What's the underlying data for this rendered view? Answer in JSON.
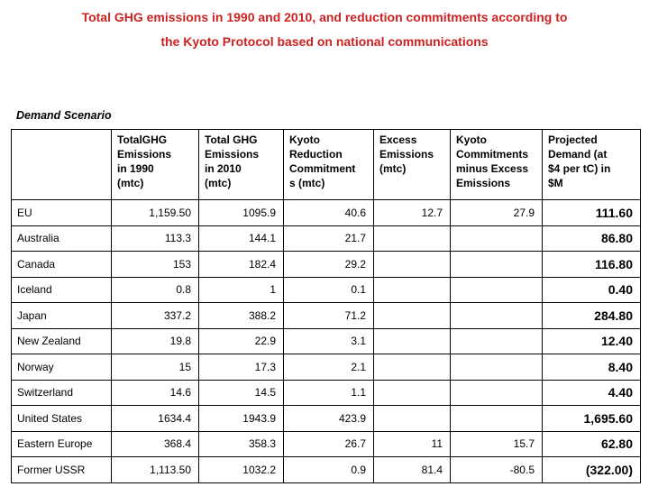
{
  "slide": {
    "title_line1": "Total GHG emissions in 1990 and 2010, and reduction commitments according to",
    "title_line2": "the Kyoto Protocol based on national communications",
    "title_color": "#cc2222",
    "section_label": "Demand Scenario"
  },
  "table": {
    "columns": [
      {
        "key": "country",
        "label": ""
      },
      {
        "key": "emissions-1990",
        "label": "TotalGHG\nEmissions\nin 1990\n(mtc)"
      },
      {
        "key": "emissions-2010",
        "label": "Total GHG\nEmissions\nin 2010\n(mtc)"
      },
      {
        "key": "kyoto-reduction-commitments",
        "label": "Kyoto\nReduction\nCommitment\ns (mtc)"
      },
      {
        "key": "excess-emissions",
        "label": "Excess\nEmissions\n(mtc)"
      },
      {
        "key": "kyoto-minus-excess",
        "label": "Kyoto\nCommitments\nminus Excess\nEmissions"
      },
      {
        "key": "projected-demand",
        "label": "Projected\nDemand (at\n$4 per tC) in\n$M"
      }
    ],
    "rows": [
      [
        "EU",
        "1,159.50",
        "1095.9",
        "40.6",
        "12.7",
        "27.9",
        "111.60"
      ],
      [
        "Australia",
        "113.3",
        "144.1",
        "21.7",
        "",
        "",
        "86.80"
      ],
      [
        "Canada",
        "153",
        "182.4",
        "29.2",
        "",
        "",
        "116.80"
      ],
      [
        "Iceland",
        "0.8",
        "1",
        "0.1",
        "",
        "",
        "0.40"
      ],
      [
        "Japan",
        "337.2",
        "388.2",
        "71.2",
        "",
        "",
        "284.80"
      ],
      [
        "New Zealand",
        "19.8",
        "22.9",
        "3.1",
        "",
        "",
        "12.40"
      ],
      [
        "Norway",
        "15",
        "17.3",
        "2.1",
        "",
        "",
        "8.40"
      ],
      [
        "Switzerland",
        "14.6",
        "14.5",
        "1.1",
        "",
        "",
        "4.40"
      ],
      [
        "United States",
        "1634.4",
        "1943.9",
        "423.9",
        "",
        "",
        "1,695.60"
      ],
      [
        "Eastern Europe",
        "368.4",
        "358.3",
        "26.7",
        "11",
        "15.7",
        "62.80"
      ],
      [
        "Former USSR",
        "1,113.50",
        "1032.2",
        "0.9",
        "81.4",
        "-80.5",
        "(322.00)"
      ]
    ]
  }
}
